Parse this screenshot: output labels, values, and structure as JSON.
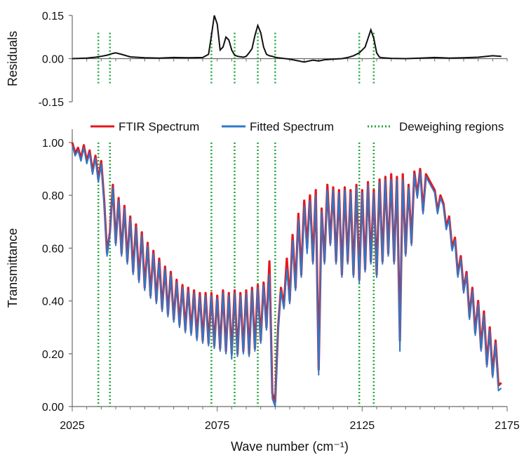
{
  "colors": {
    "ftir": "#e8161b",
    "fitted": "#2f78c8",
    "deweigh": "#23a83a",
    "residual": "#111111",
    "axis": "#6b6b6b"
  },
  "legend": [
    {
      "label": "FTIR Spectrum",
      "style": "solid",
      "color_key": "ftir"
    },
    {
      "label": "Fitted Spectrum",
      "style": "solid",
      "color_key": "fitted"
    },
    {
      "label": "Deweighing regions",
      "style": "dotted",
      "color_key": "deweigh"
    }
  ],
  "chart_data": [
    {
      "type": "line",
      "ylabel": "Residuals",
      "xlim": [
        2025,
        2175
      ],
      "ylim": [
        -0.15,
        0.15
      ],
      "yticks": [
        "0.15",
        "0.00",
        "-0.15"
      ],
      "ytick_values": [
        0.15,
        0.0,
        -0.15
      ],
      "grid": false,
      "series": [
        {
          "color_key": "residual",
          "x": [
            2025,
            2030,
            2033,
            2035,
            2037,
            2039,
            2040,
            2042,
            2045,
            2050,
            2055,
            2060,
            2065,
            2070,
            2072,
            2073,
            2074,
            2075,
            2076,
            2077,
            2078,
            2079,
            2080,
            2081,
            2082,
            2084,
            2085,
            2086,
            2087,
            2088,
            2089,
            2090,
            2091,
            2092,
            2093,
            2094,
            2095,
            2096,
            2100,
            2105,
            2108,
            2110,
            2112,
            2115,
            2118,
            2120,
            2122,
            2124,
            2126,
            2127,
            2128,
            2129,
            2130,
            2131,
            2132,
            2135,
            2140,
            2145,
            2150,
            2155,
            2160,
            2165,
            2170,
            2173
          ],
          "y": [
            0.0,
            0.002,
            0.005,
            0.008,
            0.012,
            0.018,
            0.02,
            0.015,
            0.006,
            0.003,
            0.002,
            0.004,
            0.003,
            0.004,
            0.015,
            0.08,
            0.15,
            0.12,
            0.03,
            0.04,
            0.075,
            0.065,
            0.03,
            0.012,
            0.008,
            0.005,
            0.008,
            0.02,
            0.035,
            0.08,
            0.115,
            0.09,
            0.04,
            0.015,
            0.01,
            0.008,
            0.005,
            0.003,
            -0.002,
            -0.012,
            -0.005,
            -0.008,
            -0.004,
            -0.002,
            0.0,
            0.004,
            0.01,
            0.02,
            0.04,
            0.07,
            0.1,
            0.07,
            0.02,
            0.005,
            0.003,
            0.001,
            0.0,
            0.002,
            0.004,
            0.002,
            0.003,
            0.005,
            0.01,
            0.008
          ]
        }
      ]
    },
    {
      "type": "line",
      "xlabel": "Wave number (cm⁻¹)",
      "ylabel": "Transmittance",
      "xlim": [
        2025,
        2175
      ],
      "ylim": [
        0.0,
        1.05
      ],
      "xticks": [
        "2025",
        "2075",
        "2125",
        "2175"
      ],
      "xtick_values": [
        2025,
        2075,
        2125,
        2175
      ],
      "yticks": [
        "1.00",
        "0.80",
        "0.60",
        "0.40",
        "0.20",
        "0.00"
      ],
      "ytick_values": [
        1.0,
        0.8,
        0.6,
        0.4,
        0.2,
        0.0
      ],
      "grid": false,
      "legend_position": "top",
      "series": [
        {
          "name": "FTIR Spectrum",
          "color_key": "ftir",
          "x": [
            2025,
            2026,
            2027,
            2028,
            2029,
            2030,
            2031,
            2032,
            2033,
            2034,
            2035,
            2036,
            2037,
            2038,
            2039,
            2040,
            2041,
            2042,
            2043,
            2044,
            2045,
            2046,
            2047,
            2048,
            2049,
            2050,
            2051,
            2052,
            2053,
            2054,
            2055,
            2056,
            2057,
            2058,
            2059,
            2060,
            2061,
            2062,
            2063,
            2064,
            2065,
            2066,
            2067,
            2068,
            2069,
            2070,
            2071,
            2072,
            2073,
            2074,
            2075,
            2076,
            2077,
            2078,
            2079,
            2080,
            2081,
            2082,
            2083,
            2084,
            2085,
            2086,
            2087,
            2088,
            2089,
            2090,
            2091,
            2092,
            2093,
            2094,
            2095,
            2096,
            2097,
            2098,
            2099,
            2100,
            2101,
            2102,
            2103,
            2104,
            2105,
            2106,
            2107,
            2108,
            2109,
            2110,
            2111,
            2112,
            2113,
            2114,
            2115,
            2116,
            2117,
            2118,
            2119,
            2120,
            2121,
            2122,
            2123,
            2124,
            2125,
            2126,
            2127,
            2128,
            2129,
            2130,
            2131,
            2132,
            2133,
            2134,
            2135,
            2136,
            2137,
            2138,
            2139,
            2140,
            2141,
            2142,
            2143,
            2144,
            2145,
            2146,
            2147,
            2148,
            2149,
            2150,
            2151,
            2152,
            2153,
            2154,
            2155,
            2156,
            2157,
            2158,
            2159,
            2160,
            2161,
            2162,
            2163,
            2164,
            2165,
            2166,
            2167,
            2168,
            2169,
            2170,
            2171,
            2172,
            2173
          ],
          "y": [
            1.0,
            0.96,
            0.98,
            0.94,
            0.99,
            0.93,
            0.97,
            0.89,
            0.95,
            0.86,
            0.93,
            0.78,
            0.58,
            0.66,
            0.84,
            0.62,
            0.79,
            0.58,
            0.76,
            0.55,
            0.72,
            0.51,
            0.69,
            0.48,
            0.66,
            0.45,
            0.62,
            0.42,
            0.59,
            0.4,
            0.56,
            0.37,
            0.53,
            0.35,
            0.51,
            0.33,
            0.48,
            0.31,
            0.46,
            0.29,
            0.45,
            0.28,
            0.44,
            0.26,
            0.43,
            0.25,
            0.43,
            0.24,
            0.43,
            0.23,
            0.42,
            0.22,
            0.44,
            0.21,
            0.43,
            0.2,
            0.44,
            0.2,
            0.43,
            0.21,
            0.44,
            0.2,
            0.45,
            0.22,
            0.46,
            0.25,
            0.47,
            0.3,
            0.55,
            0.05,
            0.02,
            0.3,
            0.45,
            0.38,
            0.56,
            0.4,
            0.65,
            0.45,
            0.73,
            0.5,
            0.78,
            0.6,
            0.8,
            0.55,
            0.82,
            0.14,
            0.75,
            0.55,
            0.84,
            0.62,
            0.83,
            0.55,
            0.82,
            0.5,
            0.83,
            0.55,
            0.82,
            0.5,
            0.84,
            0.48,
            0.82,
            0.52,
            0.85,
            0.55,
            0.82,
            0.5,
            0.86,
            0.55,
            0.87,
            0.58,
            0.88,
            0.55,
            0.87,
            0.25,
            0.88,
            0.58,
            0.84,
            0.62,
            0.89,
            0.8,
            0.9,
            0.74,
            0.88,
            0.86,
            0.84,
            0.82,
            0.74,
            0.8,
            0.77,
            0.68,
            0.72,
            0.6,
            0.64,
            0.5,
            0.57,
            0.44,
            0.51,
            0.34,
            0.45,
            0.28,
            0.4,
            0.22,
            0.36,
            0.16,
            0.3,
            0.12,
            0.25,
            0.08,
            0.09
          ],
          "x_dense_note": ""
        },
        {
          "name": "Fitted Spectrum",
          "color_key": "fitted",
          "x": [
            2025,
            2026,
            2027,
            2028,
            2029,
            2030,
            2031,
            2032,
            2033,
            2034,
            2035,
            2036,
            2037,
            2038,
            2039,
            2040,
            2041,
            2042,
            2043,
            2044,
            2045,
            2046,
            2047,
            2048,
            2049,
            2050,
            2051,
            2052,
            2053,
            2054,
            2055,
            2056,
            2057,
            2058,
            2059,
            2060,
            2061,
            2062,
            2063,
            2064,
            2065,
            2066,
            2067,
            2068,
            2069,
            2070,
            2071,
            2072,
            2073,
            2074,
            2075,
            2076,
            2077,
            2078,
            2079,
            2080,
            2081,
            2082,
            2083,
            2084,
            2085,
            2086,
            2087,
            2088,
            2089,
            2090,
            2091,
            2092,
            2093,
            2094,
            2095,
            2096,
            2097,
            2098,
            2099,
            2100,
            2101,
            2102,
            2103,
            2104,
            2105,
            2106,
            2107,
            2108,
            2109,
            2110,
            2111,
            2112,
            2113,
            2114,
            2115,
            2116,
            2117,
            2118,
            2119,
            2120,
            2121,
            2122,
            2123,
            2124,
            2125,
            2126,
            2127,
            2128,
            2129,
            2130,
            2131,
            2132,
            2133,
            2134,
            2135,
            2136,
            2137,
            2138,
            2139,
            2140,
            2141,
            2142,
            2143,
            2144,
            2145,
            2146,
            2147,
            2148,
            2149,
            2150,
            2151,
            2152,
            2153,
            2154,
            2155,
            2156,
            2157,
            2158,
            2159,
            2160,
            2161,
            2162,
            2163,
            2164,
            2165,
            2166,
            2167,
            2168,
            2169,
            2170,
            2171,
            2172,
            2173
          ],
          "y": [
            0.99,
            0.95,
            0.97,
            0.93,
            0.98,
            0.92,
            0.96,
            0.88,
            0.94,
            0.85,
            0.92,
            0.77,
            0.57,
            0.65,
            0.83,
            0.61,
            0.78,
            0.57,
            0.75,
            0.54,
            0.71,
            0.5,
            0.68,
            0.47,
            0.65,
            0.44,
            0.61,
            0.41,
            0.58,
            0.39,
            0.55,
            0.36,
            0.52,
            0.34,
            0.5,
            0.32,
            0.47,
            0.3,
            0.45,
            0.28,
            0.44,
            0.27,
            0.43,
            0.25,
            0.42,
            0.24,
            0.42,
            0.23,
            0.42,
            0.22,
            0.41,
            0.21,
            0.43,
            0.2,
            0.42,
            0.18,
            0.43,
            0.19,
            0.42,
            0.2,
            0.43,
            0.19,
            0.44,
            0.21,
            0.45,
            0.24,
            0.46,
            0.29,
            0.5,
            0.03,
            0.0,
            0.29,
            0.44,
            0.37,
            0.52,
            0.39,
            0.63,
            0.44,
            0.71,
            0.49,
            0.76,
            0.58,
            0.78,
            0.54,
            0.8,
            0.12,
            0.74,
            0.54,
            0.82,
            0.61,
            0.82,
            0.54,
            0.81,
            0.49,
            0.82,
            0.54,
            0.81,
            0.49,
            0.83,
            0.47,
            0.81,
            0.51,
            0.84,
            0.54,
            0.81,
            0.49,
            0.85,
            0.54,
            0.86,
            0.57,
            0.86,
            0.54,
            0.86,
            0.21,
            0.86,
            0.57,
            0.83,
            0.61,
            0.88,
            0.79,
            0.89,
            0.73,
            0.87,
            0.85,
            0.83,
            0.81,
            0.73,
            0.79,
            0.76,
            0.67,
            0.71,
            0.59,
            0.63,
            0.49,
            0.56,
            0.43,
            0.5,
            0.33,
            0.44,
            0.27,
            0.39,
            0.21,
            0.35,
            0.15,
            0.29,
            0.11,
            0.24,
            0.06,
            0.07
          ]
        }
      ],
      "deweighing_regions_x": [
        2034,
        2038,
        2073,
        2081,
        2089,
        2095,
        2124,
        2129
      ]
    }
  ]
}
